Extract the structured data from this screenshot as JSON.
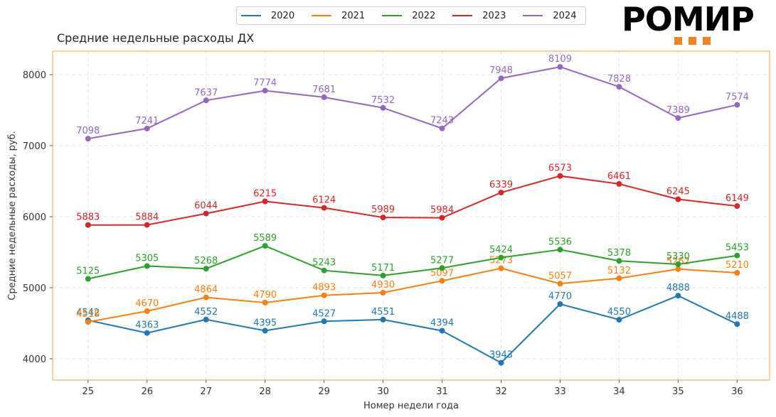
{
  "chart_data": {
    "type": "line",
    "title": "Средние недельные расходы ДХ",
    "xlabel": "Номер недели года",
    "ylabel": "Средние недельные расходы, руб.",
    "x": [
      25,
      26,
      27,
      28,
      29,
      30,
      31,
      32,
      33,
      34,
      35,
      36
    ],
    "xlim": [
      24.4,
      36.55
    ],
    "ylim": [
      3700,
      8330
    ],
    "yticks": [
      4000,
      5000,
      6000,
      7000,
      8000
    ],
    "grid": true,
    "legend_position": "top-center",
    "series": [
      {
        "name": "2020",
        "color": "#1f77b4",
        "values": [
          4542,
          4363,
          4552,
          4395,
          4527,
          4551,
          4394,
          3943,
          4770,
          4550,
          4888,
          4488
        ]
      },
      {
        "name": "2021",
        "color": "#ff7f0e",
        "values": [
          4518,
          4670,
          4864,
          4790,
          4893,
          4930,
          5097,
          5273,
          5057,
          5132,
          5262,
          5210
        ]
      },
      {
        "name": "2022",
        "color": "#2ca02c",
        "values": [
          5125,
          5305,
          5268,
          5589,
          5243,
          5171,
          5277,
          5424,
          5536,
          5378,
          5330,
          5453
        ]
      },
      {
        "name": "2023",
        "color": "#d62728",
        "values": [
          5883,
          5884,
          6044,
          6215,
          6124,
          5989,
          5984,
          6339,
          6573,
          6461,
          6245,
          6149
        ]
      },
      {
        "name": "2024",
        "color": "#9467bd",
        "values": [
          7098,
          7241,
          7637,
          7774,
          7681,
          7532,
          7243,
          7948,
          8109,
          7828,
          7389,
          7574
        ]
      }
    ]
  },
  "logo": {
    "text": "РОМИР",
    "accent_color": "#f5821f"
  }
}
